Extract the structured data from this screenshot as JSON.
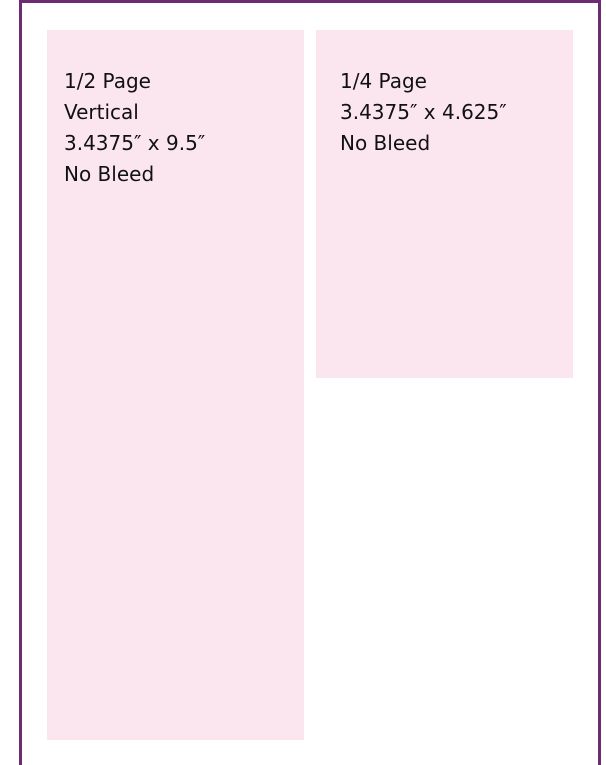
{
  "panels": [
    {
      "lines": [
        "1/2 Page",
        "Vertical",
        "3.4375″ x 9.5″",
        "No Bleed"
      ]
    },
    {
      "lines": [
        "1/4 Page",
        "3.4375″ x 4.625″",
        "No Bleed"
      ]
    }
  ]
}
